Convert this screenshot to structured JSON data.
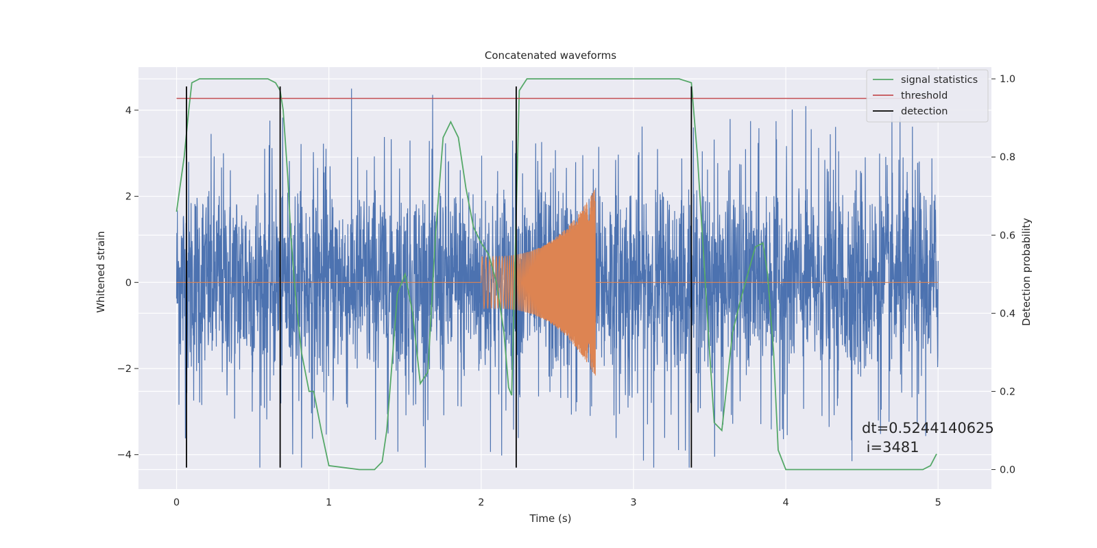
{
  "chart_data": {
    "type": "line",
    "title": "Concatenated waveforms",
    "xlabel": "Time (s)",
    "ylabel": "Whitened strain",
    "ylabel_right": "Detection probability",
    "xlim": [
      -0.25,
      5.35
    ],
    "ylim": [
      -4.8,
      5.0
    ],
    "ylim_right": [
      -0.05,
      1.03
    ],
    "x_ticks": [
      0,
      1,
      2,
      3,
      4,
      5
    ],
    "x_tick_labels": [
      "0",
      "1",
      "2",
      "3",
      "4",
      "5"
    ],
    "y_ticks": [
      -4,
      -2,
      0,
      2,
      4
    ],
    "y_tick_labels": [
      "−4",
      "−2",
      "0",
      "2",
      "4"
    ],
    "y_right_ticks": [
      0.0,
      0.2,
      0.4,
      0.6,
      0.8,
      1.0
    ],
    "y_right_tick_labels": [
      "0.0",
      "0.2",
      "0.4",
      "0.6",
      "0.8",
      "1.0"
    ],
    "grid": true,
    "legend_position": "top-right",
    "colors": {
      "strain": "#4c72b0",
      "injected": "#dd8452",
      "statistics": "#55a868",
      "threshold": "#c44e52",
      "detection": "#000000",
      "background": "#eaeaf2"
    },
    "series": [
      {
        "name": "",
        "axis": "left",
        "note": "whitened strain noise spanning 0-5 s, amplitude ~±2 (peaks to ±4.5)",
        "x_range": [
          0,
          5
        ],
        "amplitude": 1.2
      },
      {
        "name": "",
        "axis": "left",
        "note": "injected chirp",
        "chirp": {
          "t_start": 2.0,
          "t_merge": 2.75,
          "t_end": 3.0,
          "amp_start": 0.6,
          "amp_peak": 2.2
        }
      },
      {
        "name": "signal statistics",
        "axis": "right",
        "x": [
          0.0,
          0.05,
          0.08,
          0.1,
          0.15,
          0.3,
          0.5,
          0.6,
          0.65,
          0.68,
          0.7,
          0.73,
          0.75,
          0.78,
          0.82,
          0.87,
          0.9,
          0.95,
          1.0,
          1.2,
          1.3,
          1.35,
          1.38,
          1.42,
          1.45,
          1.5,
          1.55,
          1.6,
          1.65,
          1.7,
          1.75,
          1.8,
          1.85,
          1.9,
          1.95,
          2.0,
          2.05,
          2.1,
          2.15,
          2.18,
          2.2,
          2.22,
          2.25,
          2.3,
          2.5,
          3.0,
          3.3,
          3.38,
          3.42,
          3.46,
          3.5,
          3.53,
          3.58,
          3.65,
          3.7,
          3.75,
          3.8,
          3.85,
          3.88,
          3.92,
          3.95,
          4.0,
          4.5,
          4.9,
          4.95,
          4.99
        ],
        "y": [
          0.66,
          0.8,
          0.92,
          0.99,
          1.0,
          1.0,
          1.0,
          1.0,
          0.99,
          0.97,
          0.92,
          0.75,
          0.6,
          0.45,
          0.3,
          0.2,
          0.2,
          0.1,
          0.01,
          0.0,
          0.0,
          0.02,
          0.1,
          0.3,
          0.45,
          0.5,
          0.4,
          0.22,
          0.25,
          0.6,
          0.85,
          0.89,
          0.85,
          0.72,
          0.62,
          0.58,
          0.55,
          0.48,
          0.35,
          0.21,
          0.19,
          0.5,
          0.97,
          1.0,
          1.0,
          1.0,
          1.0,
          0.99,
          0.8,
          0.55,
          0.3,
          0.12,
          0.1,
          0.35,
          0.43,
          0.5,
          0.57,
          0.58,
          0.5,
          0.3,
          0.05,
          0.0,
          0.0,
          0.0,
          0.01,
          0.04
        ]
      },
      {
        "name": "threshold",
        "axis": "right",
        "x": [
          0,
          5
        ],
        "y": [
          0.95,
          0.95
        ]
      },
      {
        "name": "detection",
        "axis": "left",
        "type": "vlines",
        "x": [
          0.065,
          0.68,
          2.23,
          3.38
        ],
        "ymin": -4.3,
        "ymax": 4.55
      }
    ],
    "annotations": [
      "dt=0.5244140625",
      " i=3481"
    ]
  }
}
